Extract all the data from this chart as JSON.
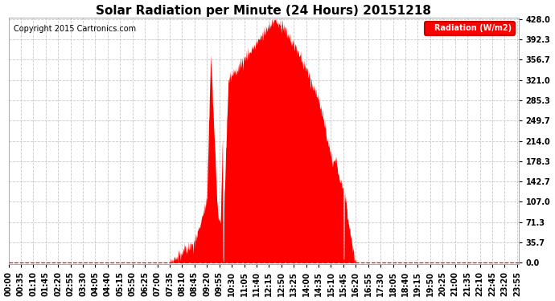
{
  "title": "Solar Radiation per Minute (24 Hours) 20151218",
  "copyright_text": "Copyright 2015 Cartronics.com",
  "legend_label": "Radiation (W/m2)",
  "y_ticks": [
    0.0,
    35.7,
    71.3,
    107.0,
    142.7,
    178.3,
    214.0,
    249.7,
    285.3,
    321.0,
    356.7,
    392.3,
    428.0
  ],
  "y_max": 428.0,
  "y_min": 0.0,
  "background_color": "#ffffff",
  "plot_bg_color": "#ffffff",
  "fill_color": "#ff0000",
  "grid_color": "#c8c8c8",
  "zero_line_color": "#ff0000",
  "title_fontsize": 11,
  "copyright_fontsize": 7,
  "tick_fontsize": 7
}
